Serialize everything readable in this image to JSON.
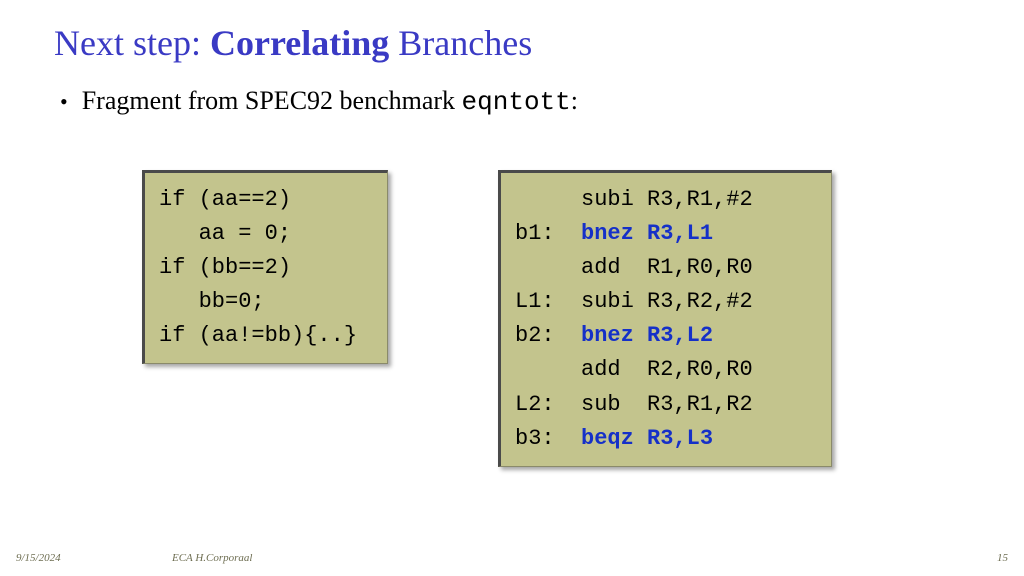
{
  "title": {
    "prefix": "Next step: ",
    "emph": "Correlating",
    "suffix": " Branches",
    "color": "#3a3ac4",
    "fontsize": 36
  },
  "bullet": {
    "lead": "Fragment from SPEC92 benchmark ",
    "code": "eqntott",
    "tail": ":",
    "fontsize": 26
  },
  "code_left": {
    "lines": [
      {
        "text": "if (aa==2)"
      },
      {
        "text": "   aa = 0;"
      },
      {
        "text": "if (bb==2)"
      },
      {
        "text": "   bb=0;"
      },
      {
        "text": "if (aa!=bb){..}"
      }
    ],
    "background_color": "#c3c48d",
    "font_family": "Courier New",
    "fontsize": 22
  },
  "code_right": {
    "lines": [
      {
        "label": "",
        "instr": "subi R3,R1,#2",
        "highlight": false
      },
      {
        "label": "b1:",
        "instr": "bnez R3,L1",
        "highlight": true
      },
      {
        "label": "",
        "instr": "add  R1,R0,R0",
        "highlight": false
      },
      {
        "label": "L1:",
        "instr": "subi R3,R2,#2",
        "highlight": false
      },
      {
        "label": "b2:",
        "instr": "bnez R3,L2",
        "highlight": true
      },
      {
        "label": "",
        "instr": "add  R2,R0,R0",
        "highlight": false
      },
      {
        "label": "L2:",
        "instr": "sub  R3,R1,R2",
        "highlight": false
      },
      {
        "label": "b3:",
        "instr": "beqz R3,L3",
        "highlight": true
      }
    ],
    "background_color": "#c3c48d",
    "highlight_color": "#1530c8",
    "font_family": "Courier New",
    "fontsize": 22
  },
  "footer": {
    "date": "9/15/2024",
    "author": "ECA  H.Corporaal",
    "page": "15"
  }
}
